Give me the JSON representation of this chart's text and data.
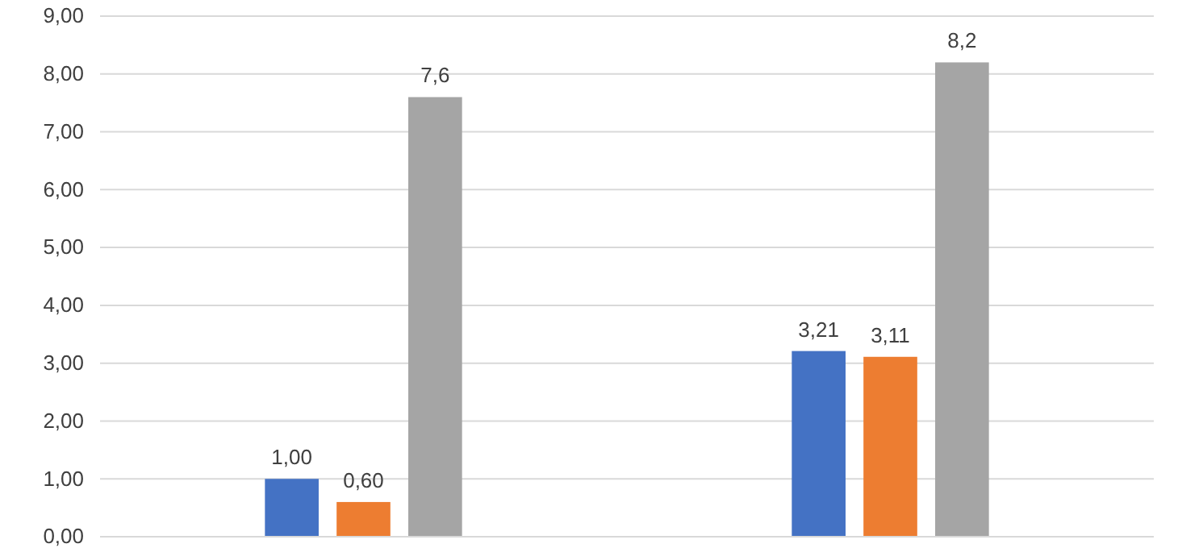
{
  "chart_data": {
    "type": "bar",
    "categories": [
      null,
      null
    ],
    "series": [
      {
        "color": "#4472c4",
        "values": [
          1.0,
          3.21
        ],
        "value_labels": [
          "1,00",
          "3,21"
        ]
      },
      {
        "color": "#ed7d31",
        "values": [
          0.6,
          3.11
        ],
        "value_labels": [
          "0,60",
          "3,11"
        ]
      },
      {
        "color": "#a5a5a5",
        "values": [
          7.6,
          8.2
        ],
        "value_labels": [
          "7,6",
          "8,2"
        ]
      }
    ],
    "ylim": [
      0,
      9
    ],
    "yticks": [
      {
        "value": 0,
        "label": "0,00"
      },
      {
        "value": 1,
        "label": "1,00"
      },
      {
        "value": 2,
        "label": "2,00"
      },
      {
        "value": 3,
        "label": "3,00"
      },
      {
        "value": 4,
        "label": "4,00"
      },
      {
        "value": 5,
        "label": "5,00"
      },
      {
        "value": 6,
        "label": "6,00"
      },
      {
        "value": 7,
        "label": "7,00"
      },
      {
        "value": 8,
        "label": "8,00"
      },
      {
        "value": 9,
        "label": "9,00"
      }
    ],
    "grid": "y"
  }
}
